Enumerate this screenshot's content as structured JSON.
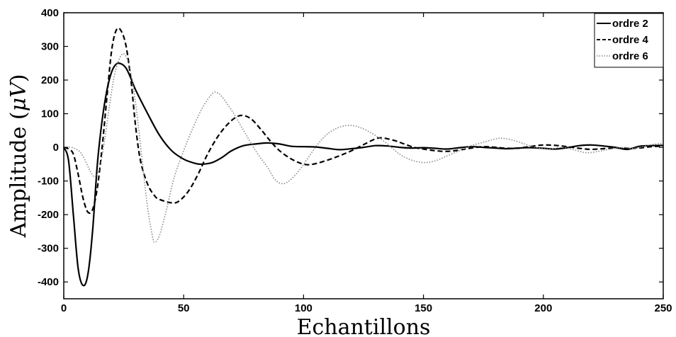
{
  "chart_data": {
    "type": "line",
    "xlabel": "Echantillons",
    "ylabel": "Amplitude (μV)",
    "xlim": [
      0,
      250
    ],
    "ylim": [
      -450,
      400
    ],
    "xticks": [
      "0",
      "50",
      "100",
      "150",
      "200",
      "250"
    ],
    "yticks": [
      "400",
      "300",
      "200",
      "100",
      "0",
      "-100",
      "-200",
      "-300",
      "-400"
    ],
    "grid": false,
    "legend_position": "top-right",
    "series": [
      {
        "name": "ordre 2",
        "style": "solid",
        "color": "#000000",
        "points": [
          [
            0,
            0
          ],
          [
            2,
            -40
          ],
          [
            4,
            -200
          ],
          [
            6,
            -360
          ],
          [
            8,
            -410
          ],
          [
            10,
            -380
          ],
          [
            12,
            -250
          ],
          [
            14,
            -50
          ],
          [
            16,
            80
          ],
          [
            18,
            170
          ],
          [
            20,
            225
          ],
          [
            22,
            248
          ],
          [
            24,
            248
          ],
          [
            26,
            235
          ],
          [
            28,
            205
          ],
          [
            30,
            170
          ],
          [
            35,
            100
          ],
          [
            40,
            35
          ],
          [
            45,
            -10
          ],
          [
            50,
            -35
          ],
          [
            55,
            -48
          ],
          [
            58,
            -50
          ],
          [
            62,
            -45
          ],
          [
            66,
            -30
          ],
          [
            70,
            -10
          ],
          [
            75,
            5
          ],
          [
            80,
            10
          ],
          [
            85,
            13
          ],
          [
            90,
            10
          ],
          [
            95,
            3
          ],
          [
            100,
            2
          ],
          [
            105,
            1
          ],
          [
            110,
            -3
          ],
          [
            115,
            -7
          ],
          [
            120,
            -4
          ],
          [
            125,
            0
          ],
          [
            130,
            5
          ],
          [
            135,
            4
          ],
          [
            140,
            0
          ],
          [
            145,
            -2
          ],
          [
            150,
            -1
          ],
          [
            155,
            -3
          ],
          [
            160,
            -5
          ],
          [
            165,
            -1
          ],
          [
            170,
            2
          ],
          [
            175,
            0
          ],
          [
            180,
            -2
          ],
          [
            185,
            -4
          ],
          [
            190,
            -2
          ],
          [
            195,
            -1
          ],
          [
            200,
            -3
          ],
          [
            205,
            -5
          ],
          [
            210,
            -1
          ],
          [
            215,
            5
          ],
          [
            220,
            7
          ],
          [
            225,
            4
          ],
          [
            230,
            0
          ],
          [
            235,
            -6
          ],
          [
            240,
            3
          ],
          [
            245,
            5
          ],
          [
            250,
            6
          ]
        ]
      },
      {
        "name": "ordre 4",
        "style": "dashed",
        "color": "#000000",
        "points": [
          [
            0,
            0
          ],
          [
            2,
            -5
          ],
          [
            4,
            -20
          ],
          [
            6,
            -80
          ],
          [
            8,
            -150
          ],
          [
            10,
            -192
          ],
          [
            12,
            -185
          ],
          [
            14,
            -120
          ],
          [
            16,
            0
          ],
          [
            18,
            150
          ],
          [
            20,
            290
          ],
          [
            22,
            350
          ],
          [
            24,
            345
          ],
          [
            26,
            300
          ],
          [
            28,
            200
          ],
          [
            30,
            60
          ],
          [
            32,
            -40
          ],
          [
            35,
            -110
          ],
          [
            38,
            -145
          ],
          [
            40,
            -155
          ],
          [
            45,
            -165
          ],
          [
            48,
            -160
          ],
          [
            52,
            -130
          ],
          [
            56,
            -80
          ],
          [
            60,
            -20
          ],
          [
            65,
            40
          ],
          [
            70,
            80
          ],
          [
            74,
            95
          ],
          [
            78,
            85
          ],
          [
            82,
            55
          ],
          [
            86,
            20
          ],
          [
            90,
            -10
          ],
          [
            95,
            -35
          ],
          [
            100,
            -50
          ],
          [
            104,
            -50
          ],
          [
            110,
            -38
          ],
          [
            115,
            -25
          ],
          [
            120,
            -10
          ],
          [
            125,
            8
          ],
          [
            130,
            25
          ],
          [
            133,
            28
          ],
          [
            138,
            20
          ],
          [
            142,
            10
          ],
          [
            146,
            0
          ],
          [
            150,
            -5
          ],
          [
            155,
            -10
          ],
          [
            160,
            -12
          ],
          [
            165,
            -8
          ],
          [
            170,
            -2
          ],
          [
            175,
            2
          ],
          [
            180,
            0
          ],
          [
            185,
            -3
          ],
          [
            190,
            -2
          ],
          [
            195,
            3
          ],
          [
            200,
            7
          ],
          [
            205,
            6
          ],
          [
            210,
            2
          ],
          [
            215,
            -3
          ],
          [
            220,
            -6
          ],
          [
            225,
            -4
          ],
          [
            230,
            -2
          ],
          [
            235,
            -3
          ],
          [
            240,
            -2
          ],
          [
            245,
            2
          ],
          [
            250,
            4
          ]
        ]
      },
      {
        "name": "ordre 6",
        "style": "dotted",
        "color": "#888888",
        "points": [
          [
            0,
            0
          ],
          [
            3,
            0
          ],
          [
            5,
            -5
          ],
          [
            7,
            -15
          ],
          [
            9,
            -40
          ],
          [
            11,
            -70
          ],
          [
            13,
            -88
          ],
          [
            15,
            -60
          ],
          [
            17,
            20
          ],
          [
            19,
            120
          ],
          [
            21,
            210
          ],
          [
            23,
            260
          ],
          [
            25,
            278
          ],
          [
            27,
            250
          ],
          [
            29,
            180
          ],
          [
            31,
            70
          ],
          [
            33,
            -60
          ],
          [
            35,
            -180
          ],
          [
            37,
            -265
          ],
          [
            38,
            -282
          ],
          [
            40,
            -260
          ],
          [
            43,
            -180
          ],
          [
            46,
            -90
          ],
          [
            50,
            -10
          ],
          [
            54,
            60
          ],
          [
            58,
            120
          ],
          [
            62,
            160
          ],
          [
            64,
            162
          ],
          [
            66,
            150
          ],
          [
            70,
            110
          ],
          [
            75,
            50
          ],
          [
            80,
            -10
          ],
          [
            85,
            -60
          ],
          [
            88,
            -95
          ],
          [
            91,
            -108
          ],
          [
            94,
            -100
          ],
          [
            98,
            -70
          ],
          [
            102,
            -30
          ],
          [
            106,
            10
          ],
          [
            110,
            40
          ],
          [
            115,
            60
          ],
          [
            120,
            65
          ],
          [
            125,
            55
          ],
          [
            130,
            35
          ],
          [
            135,
            10
          ],
          [
            140,
            -20
          ],
          [
            145,
            -38
          ],
          [
            150,
            -45
          ],
          [
            155,
            -40
          ],
          [
            160,
            -25
          ],
          [
            165,
            -10
          ],
          [
            170,
            5
          ],
          [
            175,
            15
          ],
          [
            180,
            25
          ],
          [
            183,
            27
          ],
          [
            188,
            20
          ],
          [
            193,
            8
          ],
          [
            198,
            -2
          ],
          [
            203,
            -5
          ],
          [
            208,
            0
          ],
          [
            213,
            -8
          ],
          [
            218,
            -16
          ],
          [
            223,
            -12
          ],
          [
            228,
            -5
          ],
          [
            233,
            0
          ],
          [
            238,
            -3
          ],
          [
            243,
            5
          ],
          [
            247,
            10
          ],
          [
            250,
            12
          ]
        ]
      }
    ]
  }
}
